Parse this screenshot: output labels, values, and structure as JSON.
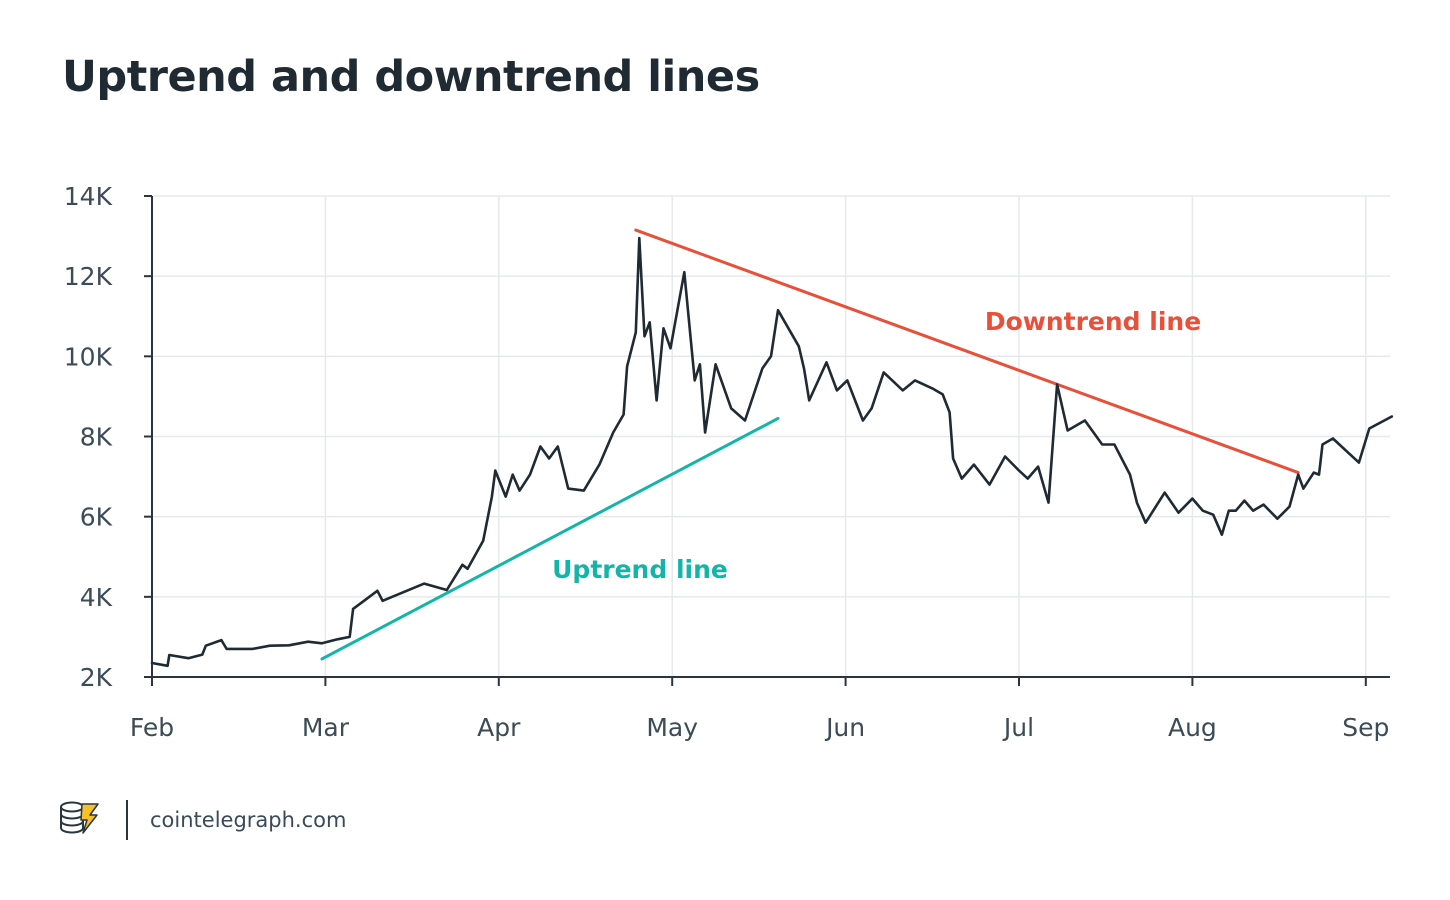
{
  "title": "Uptrend and downtrend lines",
  "footer": {
    "source": "cointelegraph.com",
    "logo_icon": "cointelegraph-logo-icon"
  },
  "colors": {
    "price_line": "#1f2a33",
    "uptrend": "#13b5a9",
    "downtrend": "#e8503a",
    "grid": "#e6e9ec",
    "axis": "#2a3540",
    "tick_text": "#3d4b57"
  },
  "chart_data": {
    "type": "line",
    "title": "Uptrend and downtrend lines",
    "xlabel": "",
    "ylabel": "",
    "x_ticks": [
      "Feb",
      "Mar",
      "Apr",
      "May",
      "Jun",
      "Jul",
      "Aug",
      "Sep"
    ],
    "y_ticks": [
      "2K",
      "4K",
      "6K",
      "8K",
      "10K",
      "12K",
      "14K"
    ],
    "y_tick_values": [
      2000,
      4000,
      6000,
      8000,
      10000,
      12000,
      14000
    ],
    "ylim": [
      2000,
      14000
    ],
    "xlim": [
      0,
      7.15
    ],
    "grid": true,
    "series": [
      {
        "name": "",
        "points": [
          [
            0.0,
            2350
          ],
          [
            0.09,
            2280
          ],
          [
            0.1,
            2550
          ],
          [
            0.21,
            2470
          ],
          [
            0.29,
            2560
          ],
          [
            0.31,
            2780
          ],
          [
            0.4,
            2920
          ],
          [
            0.43,
            2700
          ],
          [
            0.58,
            2700
          ],
          [
            0.68,
            2780
          ],
          [
            0.79,
            2790
          ],
          [
            0.9,
            2880
          ],
          [
            0.98,
            2840
          ],
          [
            1.07,
            2940
          ],
          [
            1.14,
            3000
          ],
          [
            1.16,
            3700
          ],
          [
            1.3,
            4150
          ],
          [
            1.33,
            3900
          ],
          [
            1.57,
            4330
          ],
          [
            1.7,
            4170
          ],
          [
            1.79,
            4800
          ],
          [
            1.82,
            4700
          ],
          [
            1.91,
            5400
          ],
          [
            1.96,
            6500
          ],
          [
            1.98,
            7150
          ],
          [
            2.04,
            6500
          ],
          [
            2.08,
            7050
          ],
          [
            2.12,
            6650
          ],
          [
            2.18,
            7050
          ],
          [
            2.24,
            7750
          ],
          [
            2.29,
            7450
          ],
          [
            2.34,
            7750
          ],
          [
            2.4,
            6700
          ],
          [
            2.49,
            6650
          ],
          [
            2.58,
            7300
          ],
          [
            2.66,
            8100
          ],
          [
            2.72,
            8550
          ],
          [
            2.74,
            9750
          ],
          [
            2.79,
            10600
          ],
          [
            2.81,
            12950
          ],
          [
            2.84,
            10500
          ],
          [
            2.87,
            10850
          ],
          [
            2.91,
            8900
          ],
          [
            2.95,
            10700
          ],
          [
            2.99,
            10200
          ],
          [
            3.07,
            12100
          ],
          [
            3.13,
            9400
          ],
          [
            3.16,
            9800
          ],
          [
            3.19,
            8100
          ],
          [
            3.25,
            9800
          ],
          [
            3.34,
            8700
          ],
          [
            3.42,
            8400
          ],
          [
            3.52,
            9700
          ],
          [
            3.57,
            10000
          ],
          [
            3.61,
            11150
          ],
          [
            3.73,
            10250
          ],
          [
            3.76,
            9700
          ],
          [
            3.79,
            8900
          ],
          [
            3.89,
            9850
          ],
          [
            3.95,
            9150
          ],
          [
            4.01,
            9400
          ],
          [
            4.05,
            8950
          ],
          [
            4.1,
            8400
          ],
          [
            4.15,
            8700
          ],
          [
            4.22,
            9600
          ],
          [
            4.33,
            9150
          ],
          [
            4.4,
            9400
          ],
          [
            4.5,
            9200
          ],
          [
            4.56,
            9050
          ],
          [
            4.6,
            8600
          ],
          [
            4.62,
            7450
          ],
          [
            4.67,
            6950
          ],
          [
            4.74,
            7300
          ],
          [
            4.83,
            6800
          ],
          [
            4.92,
            7500
          ],
          [
            5.0,
            7150
          ],
          [
            5.05,
            6950
          ],
          [
            5.11,
            7250
          ],
          [
            5.17,
            6350
          ],
          [
            5.22,
            9300
          ],
          [
            5.28,
            8150
          ],
          [
            5.38,
            8400
          ],
          [
            5.48,
            7800
          ],
          [
            5.55,
            7800
          ],
          [
            5.64,
            7050
          ],
          [
            5.68,
            6350
          ],
          [
            5.73,
            5850
          ],
          [
            5.84,
            6600
          ],
          [
            5.92,
            6100
          ],
          [
            6.0,
            6450
          ],
          [
            6.06,
            6150
          ],
          [
            6.12,
            6050
          ],
          [
            6.17,
            5550
          ],
          [
            6.21,
            6150
          ],
          [
            6.25,
            6150
          ],
          [
            6.3,
            6400
          ],
          [
            6.35,
            6150
          ],
          [
            6.41,
            6300
          ],
          [
            6.49,
            5950
          ],
          [
            6.56,
            6250
          ],
          [
            6.61,
            7050
          ],
          [
            6.64,
            6700
          ],
          [
            6.7,
            7100
          ],
          [
            6.73,
            7050
          ],
          [
            6.75,
            7800
          ],
          [
            6.81,
            7950
          ],
          [
            6.96,
            7350
          ],
          [
            7.02,
            8200
          ],
          [
            7.15,
            8500
          ]
        ]
      }
    ],
    "trendlines": [
      {
        "label": "Uptrend line",
        "from": [
          0.98,
          2450
        ],
        "to": [
          3.61,
          8450
        ]
      },
      {
        "label": "Downtrend line",
        "from": [
          2.79,
          13150
        ],
        "to": [
          6.61,
          7100
        ]
      }
    ]
  }
}
